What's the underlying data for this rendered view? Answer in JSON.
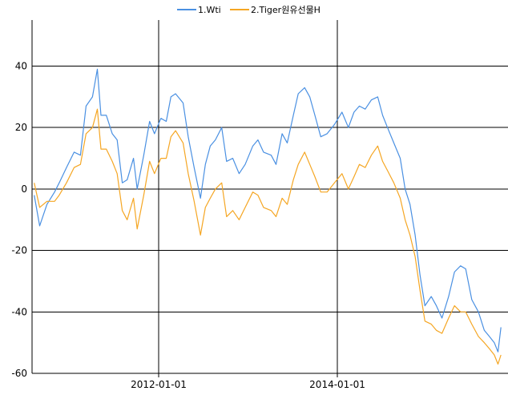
{
  "chart_data": {
    "type": "line",
    "title": "",
    "xlabel": "",
    "ylabel": "",
    "x_type": "date",
    "xlim": [
      "2010-08-01",
      "2015-11-30"
    ],
    "ylim": [
      -60,
      55
    ],
    "yticks": [
      40,
      20,
      0,
      -20,
      -40,
      -60
    ],
    "ytick_labels": [
      "40",
      "20",
      "0",
      "-20",
      "-40",
      "-60"
    ],
    "xticks": [
      "2012-01-01",
      "2014-01-01"
    ],
    "xtick_labels": [
      "2012-01-01",
      "2014-01-01"
    ],
    "grid": true,
    "legend_position": "top-center",
    "series": [
      {
        "name": "1.Wti",
        "color": "#4a90e2",
        "points": [
          [
            "2010-08-10",
            -2
          ],
          [
            "2010-09-01",
            -12
          ],
          [
            "2010-10-01",
            -5
          ],
          [
            "2010-11-01",
            -1
          ],
          [
            "2010-11-20",
            2
          ],
          [
            "2010-12-20",
            7
          ],
          [
            "2011-01-20",
            12
          ],
          [
            "2011-02-15",
            11
          ],
          [
            "2011-03-10",
            27
          ],
          [
            "2011-04-05",
            30
          ],
          [
            "2011-04-25",
            39
          ],
          [
            "2011-05-10",
            24
          ],
          [
            "2011-06-01",
            24
          ],
          [
            "2011-06-25",
            18
          ],
          [
            "2011-07-15",
            16
          ],
          [
            "2011-08-05",
            2
          ],
          [
            "2011-08-25",
            3
          ],
          [
            "2011-09-20",
            10
          ],
          [
            "2011-10-05",
            0
          ],
          [
            "2011-11-01",
            11
          ],
          [
            "2011-11-25",
            22
          ],
          [
            "2011-12-15",
            18
          ],
          [
            "2012-01-10",
            23
          ],
          [
            "2012-02-01",
            22
          ],
          [
            "2012-02-20",
            30
          ],
          [
            "2012-03-10",
            31
          ],
          [
            "2012-04-10",
            28
          ],
          [
            "2012-05-01",
            17
          ],
          [
            "2012-05-25",
            7
          ],
          [
            "2012-06-20",
            -3
          ],
          [
            "2012-07-10",
            8
          ],
          [
            "2012-07-30",
            14
          ],
          [
            "2012-08-20",
            16
          ],
          [
            "2012-09-15",
            20
          ],
          [
            "2012-10-05",
            9
          ],
          [
            "2012-10-30",
            10
          ],
          [
            "2012-11-25",
            5
          ],
          [
            "2012-12-20",
            8
          ],
          [
            "2013-01-20",
            14
          ],
          [
            "2013-02-10",
            16
          ],
          [
            "2013-03-05",
            12
          ],
          [
            "2013-04-05",
            11
          ],
          [
            "2013-04-25",
            8
          ],
          [
            "2013-05-20",
            18
          ],
          [
            "2013-06-10",
            15
          ],
          [
            "2013-07-05",
            24
          ],
          [
            "2013-07-25",
            31
          ],
          [
            "2013-08-20",
            33
          ],
          [
            "2013-09-10",
            30
          ],
          [
            "2013-10-01",
            24
          ],
          [
            "2013-10-25",
            17
          ],
          [
            "2013-11-20",
            18
          ],
          [
            "2013-12-20",
            21
          ],
          [
            "2014-01-20",
            25
          ],
          [
            "2014-02-15",
            20
          ],
          [
            "2014-03-10",
            25
          ],
          [
            "2014-04-01",
            27
          ],
          [
            "2014-04-25",
            26
          ],
          [
            "2014-05-20",
            29
          ],
          [
            "2014-06-15",
            30
          ],
          [
            "2014-07-05",
            24
          ],
          [
            "2014-07-25",
            20
          ],
          [
            "2014-08-20",
            15
          ],
          [
            "2014-09-15",
            10
          ],
          [
            "2014-10-05",
            0
          ],
          [
            "2014-10-25",
            -5
          ],
          [
            "2014-11-15",
            -15
          ],
          [
            "2014-12-05",
            -28
          ],
          [
            "2014-12-25",
            -38
          ],
          [
            "2015-01-20",
            -35
          ],
          [
            "2015-02-10",
            -38
          ],
          [
            "2015-03-05",
            -42
          ],
          [
            "2015-04-01",
            -35
          ],
          [
            "2015-04-25",
            -27
          ],
          [
            "2015-05-20",
            -25
          ],
          [
            "2015-06-10",
            -26
          ],
          [
            "2015-07-05",
            -36
          ],
          [
            "2015-08-01",
            -40
          ],
          [
            "2015-08-25",
            -46
          ],
          [
            "2015-09-15",
            -48
          ],
          [
            "2015-10-05",
            -50
          ],
          [
            "2015-10-20",
            -53
          ],
          [
            "2015-11-01",
            -45
          ]
        ]
      },
      {
        "name": "2.Tiger원유선물H",
        "color": "#f5a623",
        "points": [
          [
            "2010-08-10",
            2
          ],
          [
            "2010-09-01",
            -6
          ],
          [
            "2010-10-01",
            -4
          ],
          [
            "2010-11-01",
            -4
          ],
          [
            "2010-11-20",
            -2
          ],
          [
            "2010-12-20",
            2
          ],
          [
            "2011-01-20",
            7
          ],
          [
            "2011-02-15",
            8
          ],
          [
            "2011-03-10",
            18
          ],
          [
            "2011-04-05",
            20
          ],
          [
            "2011-04-25",
            26
          ],
          [
            "2011-05-10",
            13
          ],
          [
            "2011-06-01",
            13
          ],
          [
            "2011-06-25",
            9
          ],
          [
            "2011-07-15",
            5
          ],
          [
            "2011-08-05",
            -7
          ],
          [
            "2011-08-25",
            -10
          ],
          [
            "2011-09-20",
            -3
          ],
          [
            "2011-10-05",
            -13
          ],
          [
            "2011-11-01",
            -2
          ],
          [
            "2011-11-25",
            9
          ],
          [
            "2011-12-15",
            5
          ],
          [
            "2012-01-10",
            10
          ],
          [
            "2012-02-01",
            10
          ],
          [
            "2012-02-20",
            17
          ],
          [
            "2012-03-10",
            19
          ],
          [
            "2012-04-10",
            15
          ],
          [
            "2012-05-01",
            5
          ],
          [
            "2012-05-25",
            -4
          ],
          [
            "2012-06-20",
            -15
          ],
          [
            "2012-07-10",
            -6
          ],
          [
            "2012-07-30",
            -3
          ],
          [
            "2012-08-20",
            0
          ],
          [
            "2012-09-15",
            2
          ],
          [
            "2012-10-05",
            -9
          ],
          [
            "2012-10-30",
            -7
          ],
          [
            "2012-11-25",
            -10
          ],
          [
            "2012-12-20",
            -6
          ],
          [
            "2013-01-20",
            -1
          ],
          [
            "2013-02-10",
            -2
          ],
          [
            "2013-03-05",
            -6
          ],
          [
            "2013-04-05",
            -7
          ],
          [
            "2013-04-25",
            -9
          ],
          [
            "2013-05-20",
            -3
          ],
          [
            "2013-06-10",
            -5
          ],
          [
            "2013-07-05",
            3
          ],
          [
            "2013-07-25",
            8
          ],
          [
            "2013-08-20",
            12
          ],
          [
            "2013-09-10",
            8
          ],
          [
            "2013-10-01",
            4
          ],
          [
            "2013-10-25",
            -1
          ],
          [
            "2013-11-20",
            -1
          ],
          [
            "2013-12-20",
            2
          ],
          [
            "2014-01-20",
            5
          ],
          [
            "2014-02-15",
            0
          ],
          [
            "2014-03-10",
            4
          ],
          [
            "2014-04-01",
            8
          ],
          [
            "2014-04-25",
            7
          ],
          [
            "2014-05-20",
            11
          ],
          [
            "2014-06-15",
            14
          ],
          [
            "2014-07-05",
            9
          ],
          [
            "2014-07-25",
            6
          ],
          [
            "2014-08-20",
            2
          ],
          [
            "2014-09-15",
            -3
          ],
          [
            "2014-10-05",
            -10
          ],
          [
            "2014-10-25",
            -15
          ],
          [
            "2014-11-15",
            -22
          ],
          [
            "2014-12-05",
            -33
          ],
          [
            "2014-12-25",
            -43
          ],
          [
            "2015-01-20",
            -44
          ],
          [
            "2015-02-10",
            -46
          ],
          [
            "2015-03-05",
            -47
          ],
          [
            "2015-04-01",
            -42
          ],
          [
            "2015-04-25",
            -38
          ],
          [
            "2015-05-20",
            -40
          ],
          [
            "2015-06-10",
            -40
          ],
          [
            "2015-07-05",
            -44
          ],
          [
            "2015-08-01",
            -48
          ],
          [
            "2015-08-25",
            -50
          ],
          [
            "2015-09-15",
            -52
          ],
          [
            "2015-10-05",
            -54
          ],
          [
            "2015-10-20",
            -57
          ],
          [
            "2015-11-01",
            -54
          ]
        ]
      }
    ]
  }
}
